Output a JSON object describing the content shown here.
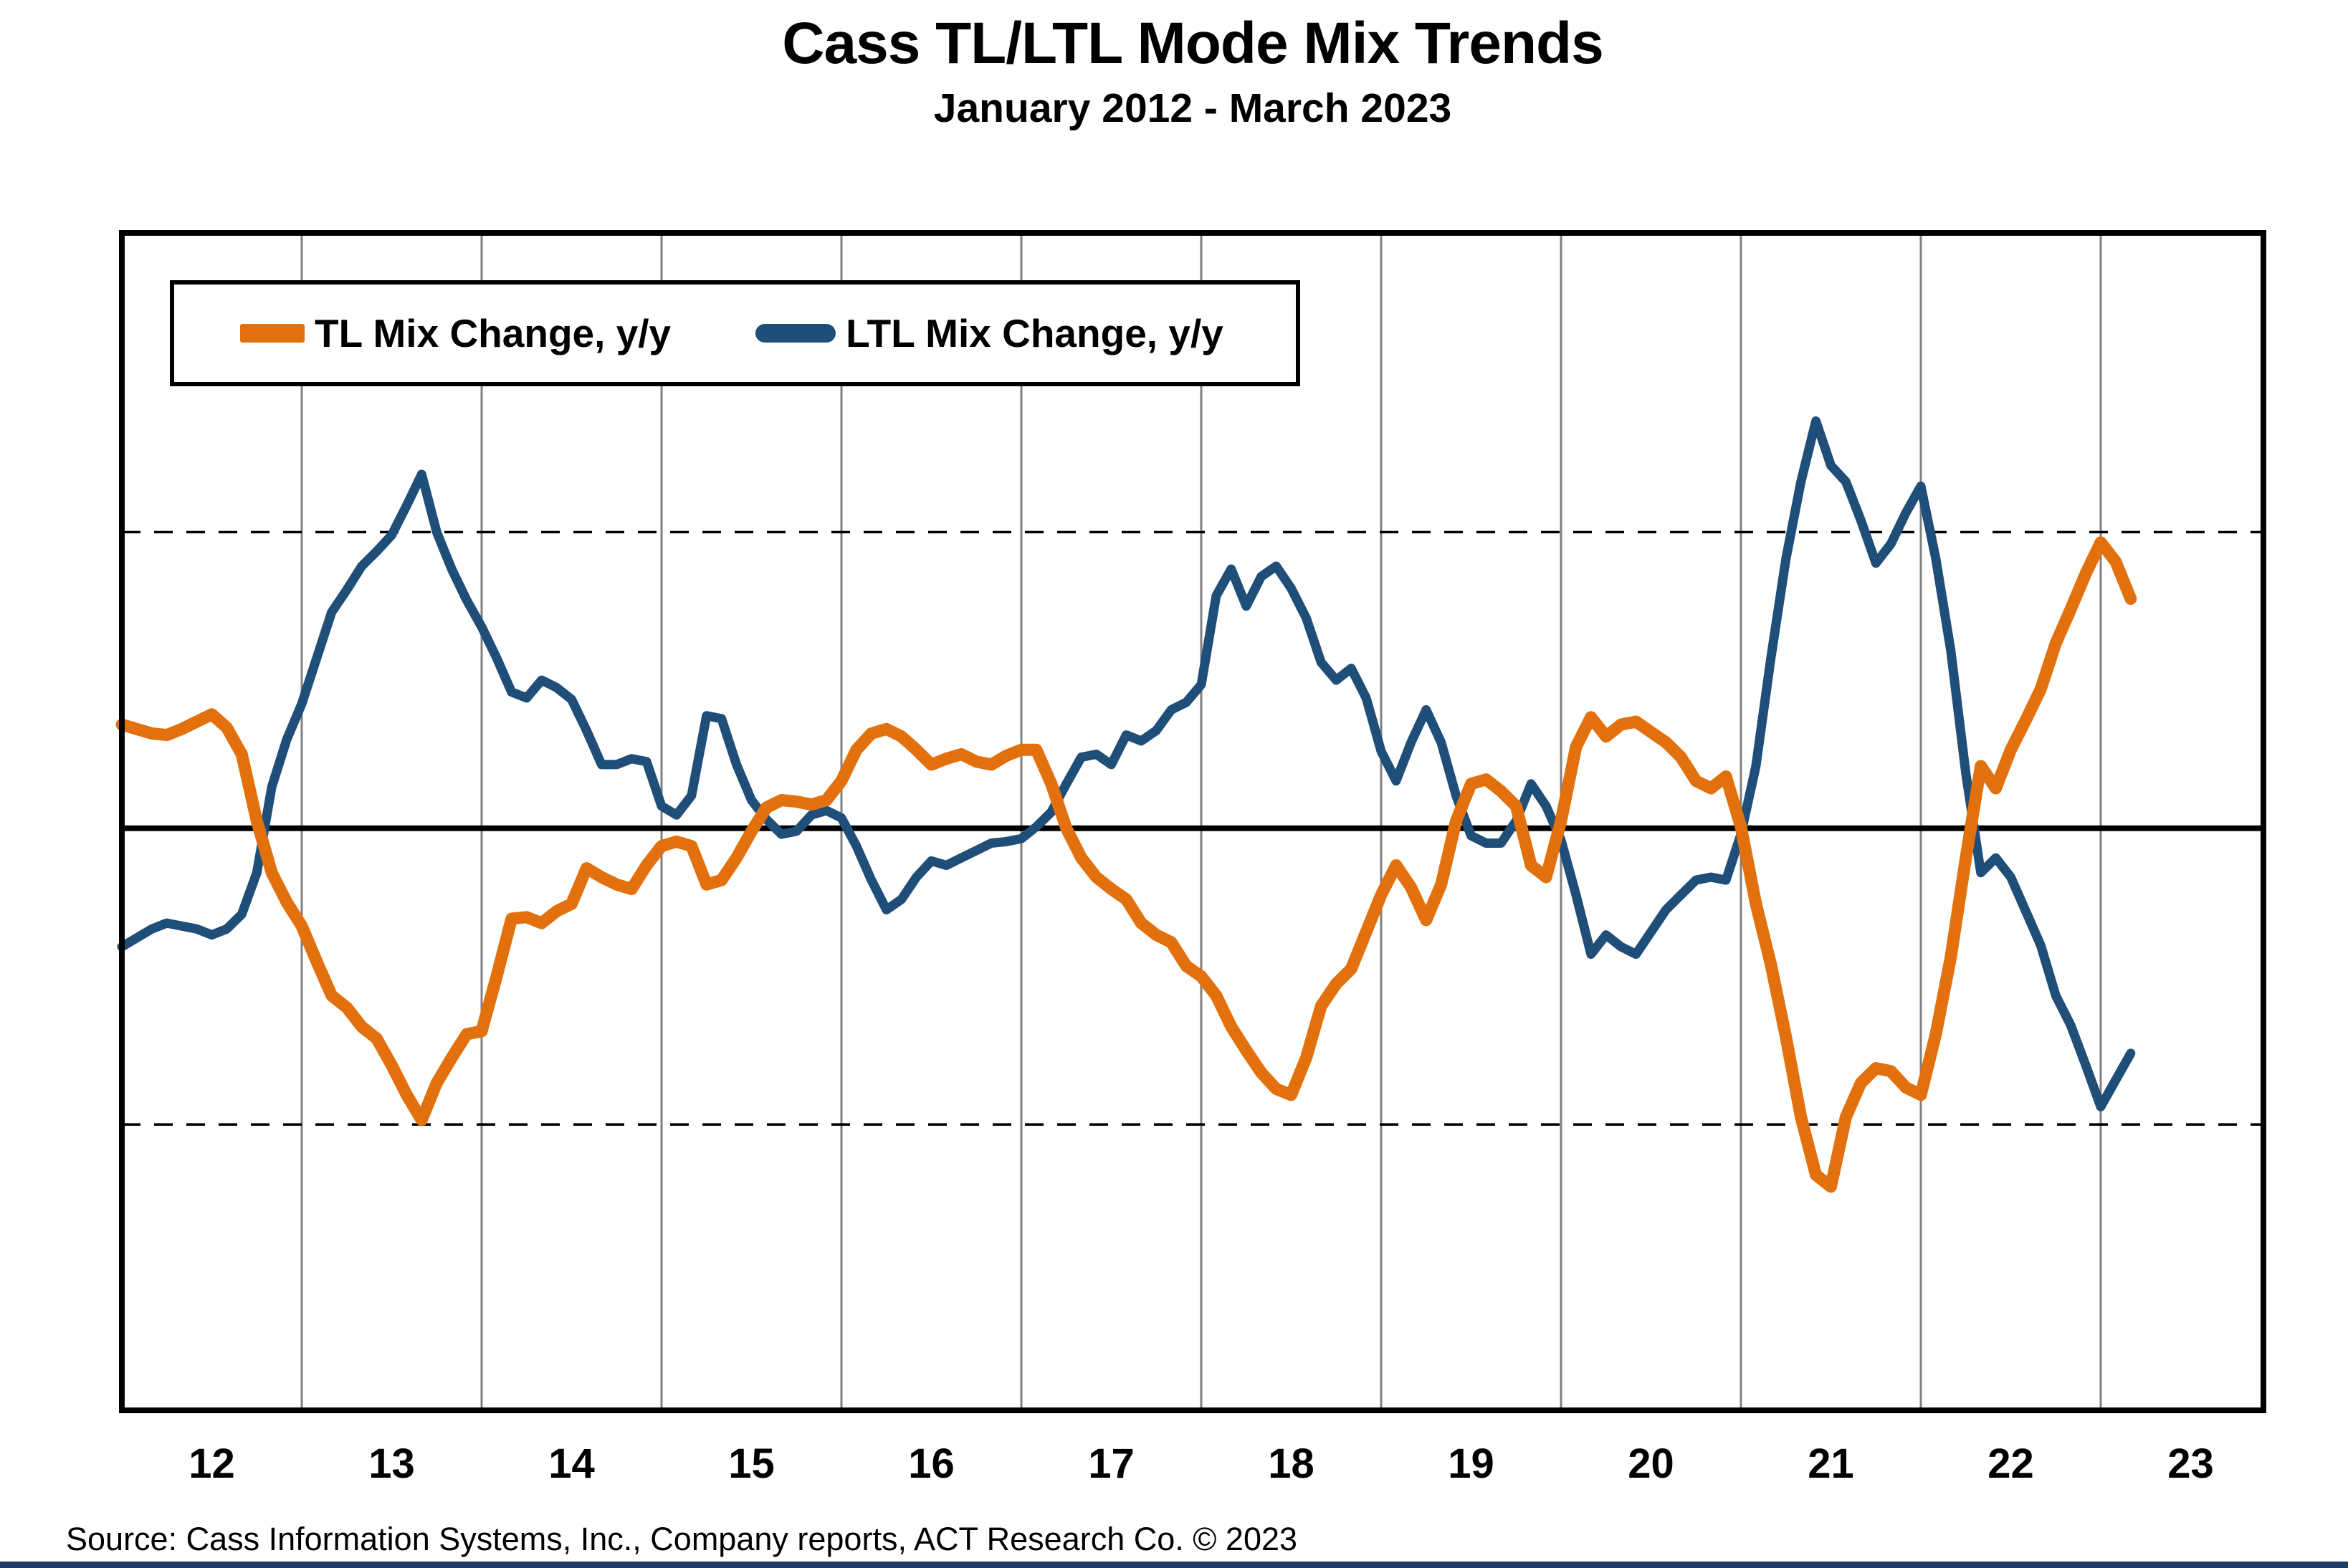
{
  "title": "Cass TL/LTL Mode Mix Trends",
  "subtitle": "January 2012 - March 2023",
  "source": "Source: Cass Information Systems, Inc., Company reports, ACT Research Co. © 2023",
  "colors": {
    "tl_orange": "#E2700C",
    "ltl_blue": "#1F4E79",
    "footer_bar": "#1F3864",
    "gridline": "#808080",
    "axis_black": "#000000",
    "background": "#FFFFFF"
  },
  "chart_data": {
    "type": "line",
    "title": "Cass TL/LTL Mode Mix Trends",
    "subtitle": "January 2012 - March 2023",
    "xlabel": "",
    "ylabel": "",
    "x_start_month": "2012-01",
    "x_end_month": "2023-03",
    "months_total": 135,
    "x_tick_labels": [
      "12",
      "13",
      "14",
      "15",
      "16",
      "17",
      "18",
      "19",
      "20",
      "21",
      "22",
      "23"
    ],
    "ylim": [
      -3.93,
      4.02
    ],
    "y_axis_labels_shown": false,
    "zero_line": 0,
    "dashed_reference_lines": [
      2,
      -2
    ],
    "vertical_gridlines": "every January",
    "legend_position": "top-left",
    "series": [
      {
        "name": "TL Mix Change, y/y",
        "color": "#E2700C",
        "swatch": "bar",
        "line_width": 17,
        "values": [
          0.7,
          0.67,
          0.64,
          0.63,
          0.67,
          0.72,
          0.77,
          0.68,
          0.5,
          0.05,
          -0.3,
          -0.5,
          -0.66,
          -0.9,
          -1.13,
          -1.21,
          -1.34,
          -1.42,
          -1.6,
          -1.8,
          -1.97,
          -1.72,
          -1.55,
          -1.39,
          -1.37,
          -1.0,
          -0.61,
          -0.6,
          -0.64,
          -0.56,
          -0.51,
          -0.27,
          -0.33,
          -0.38,
          -0.41,
          -0.25,
          -0.12,
          -0.09,
          -0.12,
          -0.38,
          -0.35,
          -0.2,
          -0.02,
          0.14,
          0.19,
          0.18,
          0.16,
          0.19,
          0.32,
          0.53,
          0.64,
          0.67,
          0.62,
          0.53,
          0.43,
          0.47,
          0.5,
          0.45,
          0.43,
          0.49,
          0.53,
          0.53,
          0.3,
          0.0,
          -0.2,
          -0.33,
          -0.41,
          -0.48,
          -0.64,
          -0.72,
          -0.77,
          -0.93,
          -1.0,
          -1.13,
          -1.34,
          -1.5,
          -1.65,
          -1.76,
          -1.8,
          -1.55,
          -1.2,
          -1.05,
          -0.95,
          -0.7,
          -0.45,
          -0.25,
          -0.4,
          -0.62,
          -0.38,
          0.05,
          0.3,
          0.33,
          0.25,
          0.15,
          -0.25,
          -0.33,
          0.05,
          0.55,
          0.75,
          0.62,
          0.7,
          0.72,
          0.65,
          0.58,
          0.48,
          0.32,
          0.27,
          0.35,
          0.01,
          -0.51,
          -0.92,
          -1.41,
          -1.95,
          -2.34,
          -2.42,
          -1.95,
          -1.72,
          -1.62,
          -1.64,
          -1.75,
          -1.8,
          -1.39,
          -0.87,
          -0.2,
          0.42,
          0.27,
          0.53,
          0.73,
          0.94,
          1.25,
          1.48,
          1.72,
          1.93,
          1.8,
          1.55
        ]
      },
      {
        "name": "LTL Mix Change, y/y",
        "color": "#1F4E79",
        "swatch": "line",
        "line_width": 13,
        "values": [
          -0.8,
          -0.74,
          -0.68,
          -0.64,
          -0.66,
          -0.68,
          -0.72,
          -0.68,
          -0.58,
          -0.3,
          0.28,
          0.6,
          0.84,
          1.15,
          1.46,
          1.61,
          1.77,
          1.87,
          1.98,
          2.18,
          2.39,
          2.0,
          1.75,
          1.54,
          1.36,
          1.15,
          0.92,
          0.88,
          1.0,
          0.95,
          0.87,
          0.66,
          0.43,
          0.43,
          0.47,
          0.45,
          0.15,
          0.09,
          0.22,
          0.76,
          0.74,
          0.43,
          0.19,
          0.06,
          -0.04,
          -0.02,
          0.09,
          0.12,
          0.07,
          -0.12,
          -0.35,
          -0.55,
          -0.48,
          -0.33,
          -0.22,
          -0.25,
          -0.2,
          -0.15,
          -0.1,
          -0.09,
          -0.07,
          0.01,
          0.11,
          0.3,
          0.48,
          0.5,
          0.43,
          0.63,
          0.59,
          0.66,
          0.8,
          0.85,
          0.97,
          1.57,
          1.75,
          1.5,
          1.7,
          1.77,
          1.62,
          1.42,
          1.12,
          1.0,
          1.08,
          0.88,
          0.52,
          0.32,
          0.58,
          0.8,
          0.58,
          0.22,
          -0.05,
          -0.1,
          -0.1,
          0.05,
          0.3,
          0.15,
          -0.08,
          -0.45,
          -0.85,
          -0.72,
          -0.8,
          -0.85,
          -0.7,
          -0.55,
          -0.45,
          -0.35,
          -0.33,
          -0.35,
          -0.04,
          0.42,
          1.15,
          1.82,
          2.34,
          2.75,
          2.45,
          2.34,
          2.08,
          1.79,
          1.92,
          2.13,
          2.31,
          1.82,
          1.2,
          0.37,
          -0.3,
          -0.2,
          -0.33,
          -0.56,
          -0.79,
          -1.13,
          -1.33,
          -1.6,
          -1.88,
          -1.7,
          -1.52
        ]
      }
    ]
  }
}
